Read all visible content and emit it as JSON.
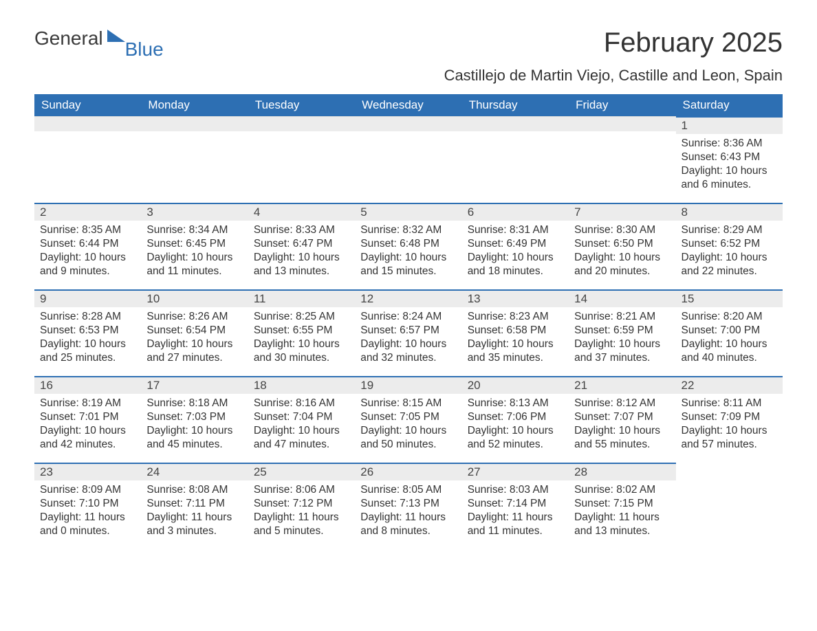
{
  "branding": {
    "logo_part1": "General",
    "logo_part2": "Blue",
    "logo_color_dark": "#3a3a3a",
    "logo_color_blue": "#2d6fb3"
  },
  "page": {
    "title": "February 2025",
    "location": "Castillejo de Martin Viejo, Castille and Leon, Spain"
  },
  "colors": {
    "header_bg": "#2d6fb3",
    "header_text": "#ffffff",
    "daynum_bg": "#ececec",
    "daynum_border": "#2d6fb3",
    "body_text": "#333333",
    "page_bg": "#ffffff"
  },
  "fonts": {
    "title_size_pt": 30,
    "subtitle_size_pt": 17,
    "header_size_pt": 13,
    "daynum_size_pt": 13,
    "body_size_pt": 12
  },
  "weekdays": [
    "Sunday",
    "Monday",
    "Tuesday",
    "Wednesday",
    "Thursday",
    "Friday",
    "Saturday"
  ],
  "weeks": [
    [
      null,
      null,
      null,
      null,
      null,
      null,
      {
        "n": "1",
        "sunrise": "Sunrise: 8:36 AM",
        "sunset": "Sunset: 6:43 PM",
        "daylight": "Daylight: 10 hours and 6 minutes."
      }
    ],
    [
      {
        "n": "2",
        "sunrise": "Sunrise: 8:35 AM",
        "sunset": "Sunset: 6:44 PM",
        "daylight": "Daylight: 10 hours and 9 minutes."
      },
      {
        "n": "3",
        "sunrise": "Sunrise: 8:34 AM",
        "sunset": "Sunset: 6:45 PM",
        "daylight": "Daylight: 10 hours and 11 minutes."
      },
      {
        "n": "4",
        "sunrise": "Sunrise: 8:33 AM",
        "sunset": "Sunset: 6:47 PM",
        "daylight": "Daylight: 10 hours and 13 minutes."
      },
      {
        "n": "5",
        "sunrise": "Sunrise: 8:32 AM",
        "sunset": "Sunset: 6:48 PM",
        "daylight": "Daylight: 10 hours and 15 minutes."
      },
      {
        "n": "6",
        "sunrise": "Sunrise: 8:31 AM",
        "sunset": "Sunset: 6:49 PM",
        "daylight": "Daylight: 10 hours and 18 minutes."
      },
      {
        "n": "7",
        "sunrise": "Sunrise: 8:30 AM",
        "sunset": "Sunset: 6:50 PM",
        "daylight": "Daylight: 10 hours and 20 minutes."
      },
      {
        "n": "8",
        "sunrise": "Sunrise: 8:29 AM",
        "sunset": "Sunset: 6:52 PM",
        "daylight": "Daylight: 10 hours and 22 minutes."
      }
    ],
    [
      {
        "n": "9",
        "sunrise": "Sunrise: 8:28 AM",
        "sunset": "Sunset: 6:53 PM",
        "daylight": "Daylight: 10 hours and 25 minutes."
      },
      {
        "n": "10",
        "sunrise": "Sunrise: 8:26 AM",
        "sunset": "Sunset: 6:54 PM",
        "daylight": "Daylight: 10 hours and 27 minutes."
      },
      {
        "n": "11",
        "sunrise": "Sunrise: 8:25 AM",
        "sunset": "Sunset: 6:55 PM",
        "daylight": "Daylight: 10 hours and 30 minutes."
      },
      {
        "n": "12",
        "sunrise": "Sunrise: 8:24 AM",
        "sunset": "Sunset: 6:57 PM",
        "daylight": "Daylight: 10 hours and 32 minutes."
      },
      {
        "n": "13",
        "sunrise": "Sunrise: 8:23 AM",
        "sunset": "Sunset: 6:58 PM",
        "daylight": "Daylight: 10 hours and 35 minutes."
      },
      {
        "n": "14",
        "sunrise": "Sunrise: 8:21 AM",
        "sunset": "Sunset: 6:59 PM",
        "daylight": "Daylight: 10 hours and 37 minutes."
      },
      {
        "n": "15",
        "sunrise": "Sunrise: 8:20 AM",
        "sunset": "Sunset: 7:00 PM",
        "daylight": "Daylight: 10 hours and 40 minutes."
      }
    ],
    [
      {
        "n": "16",
        "sunrise": "Sunrise: 8:19 AM",
        "sunset": "Sunset: 7:01 PM",
        "daylight": "Daylight: 10 hours and 42 minutes."
      },
      {
        "n": "17",
        "sunrise": "Sunrise: 8:18 AM",
        "sunset": "Sunset: 7:03 PM",
        "daylight": "Daylight: 10 hours and 45 minutes."
      },
      {
        "n": "18",
        "sunrise": "Sunrise: 8:16 AM",
        "sunset": "Sunset: 7:04 PM",
        "daylight": "Daylight: 10 hours and 47 minutes."
      },
      {
        "n": "19",
        "sunrise": "Sunrise: 8:15 AM",
        "sunset": "Sunset: 7:05 PM",
        "daylight": "Daylight: 10 hours and 50 minutes."
      },
      {
        "n": "20",
        "sunrise": "Sunrise: 8:13 AM",
        "sunset": "Sunset: 7:06 PM",
        "daylight": "Daylight: 10 hours and 52 minutes."
      },
      {
        "n": "21",
        "sunrise": "Sunrise: 8:12 AM",
        "sunset": "Sunset: 7:07 PM",
        "daylight": "Daylight: 10 hours and 55 minutes."
      },
      {
        "n": "22",
        "sunrise": "Sunrise: 8:11 AM",
        "sunset": "Sunset: 7:09 PM",
        "daylight": "Daylight: 10 hours and 57 minutes."
      }
    ],
    [
      {
        "n": "23",
        "sunrise": "Sunrise: 8:09 AM",
        "sunset": "Sunset: 7:10 PM",
        "daylight": "Daylight: 11 hours and 0 minutes."
      },
      {
        "n": "24",
        "sunrise": "Sunrise: 8:08 AM",
        "sunset": "Sunset: 7:11 PM",
        "daylight": "Daylight: 11 hours and 3 minutes."
      },
      {
        "n": "25",
        "sunrise": "Sunrise: 8:06 AM",
        "sunset": "Sunset: 7:12 PM",
        "daylight": "Daylight: 11 hours and 5 minutes."
      },
      {
        "n": "26",
        "sunrise": "Sunrise: 8:05 AM",
        "sunset": "Sunset: 7:13 PM",
        "daylight": "Daylight: 11 hours and 8 minutes."
      },
      {
        "n": "27",
        "sunrise": "Sunrise: 8:03 AM",
        "sunset": "Sunset: 7:14 PM",
        "daylight": "Daylight: 11 hours and 11 minutes."
      },
      {
        "n": "28",
        "sunrise": "Sunrise: 8:02 AM",
        "sunset": "Sunset: 7:15 PM",
        "daylight": "Daylight: 11 hours and 13 minutes."
      },
      null
    ]
  ]
}
